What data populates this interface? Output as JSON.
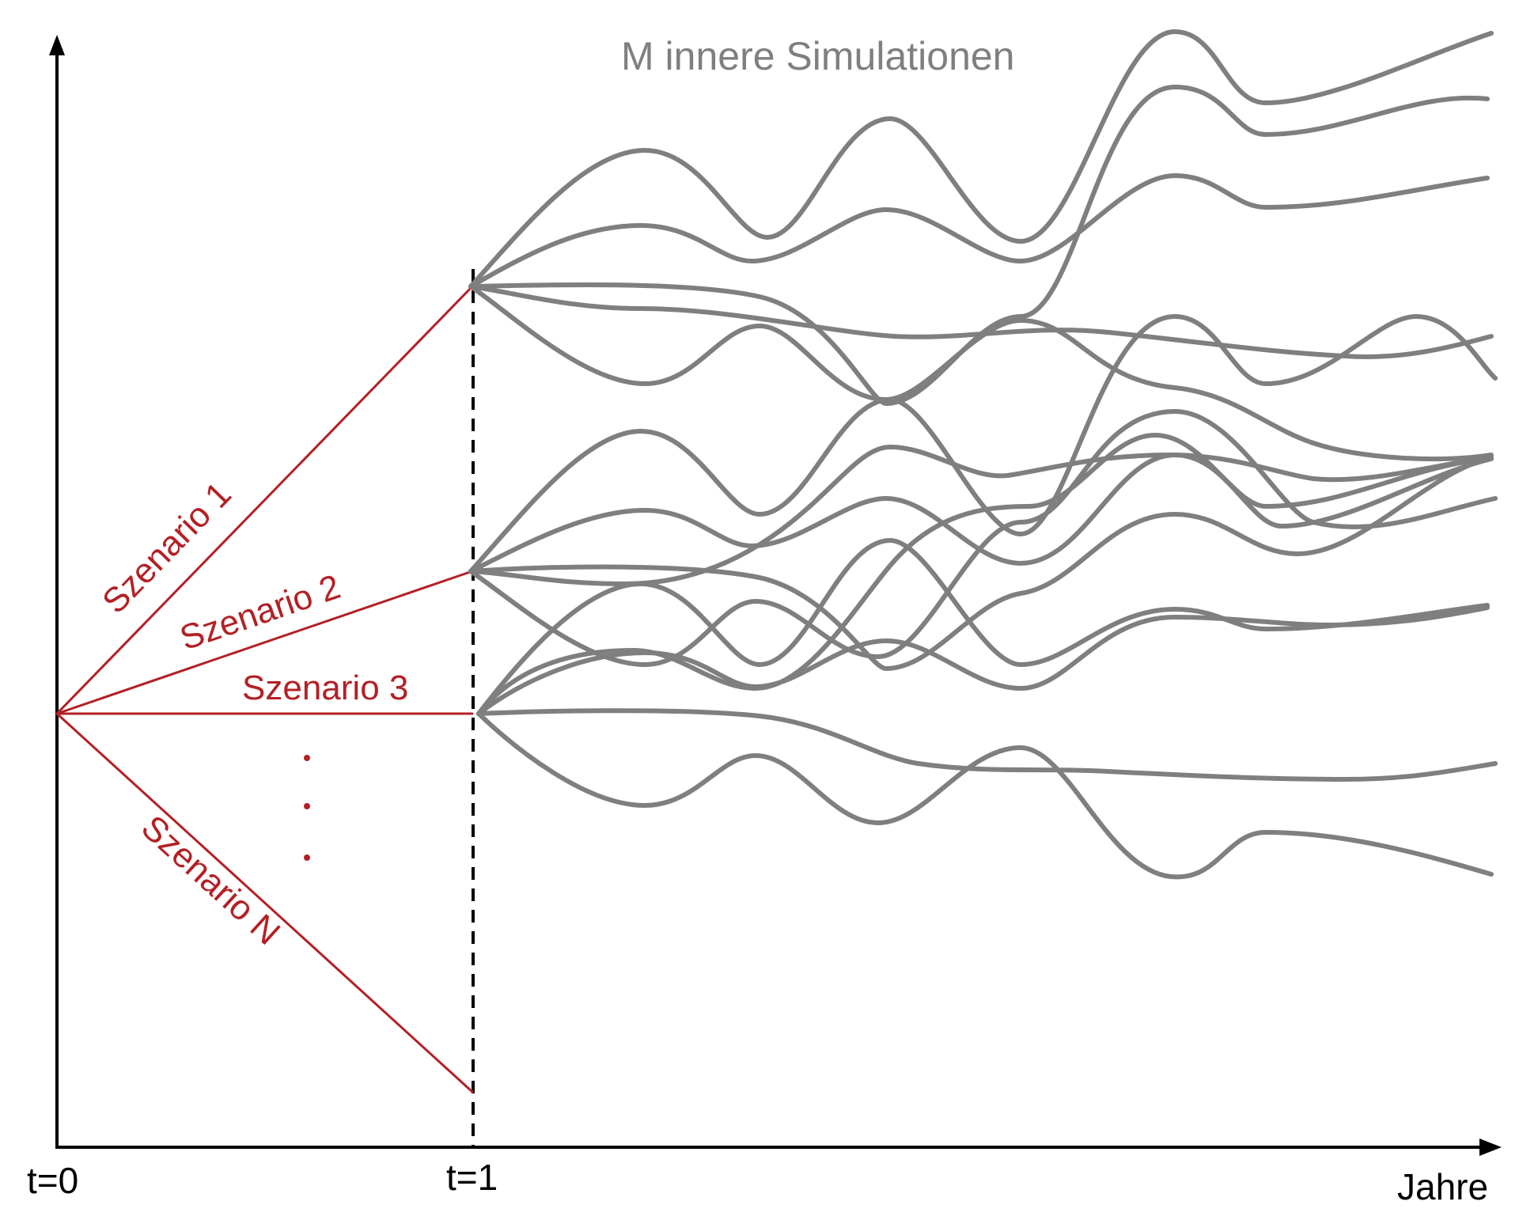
{
  "title": "M innere Simulationen",
  "x_axis": {
    "label": "Jahre",
    "start_label": "t=0",
    "marker_label": "t=1"
  },
  "scenarios": [
    {
      "label": "Szenario 1"
    },
    {
      "label": "Szenario 2"
    },
    {
      "label": "Szenario 3"
    },
    {
      "label": "Szenario N"
    }
  ],
  "ellipsis": "⋮",
  "colors": {
    "scenario": "#b32025",
    "simulation": "#7f7f7f",
    "axis": "#000000"
  }
}
